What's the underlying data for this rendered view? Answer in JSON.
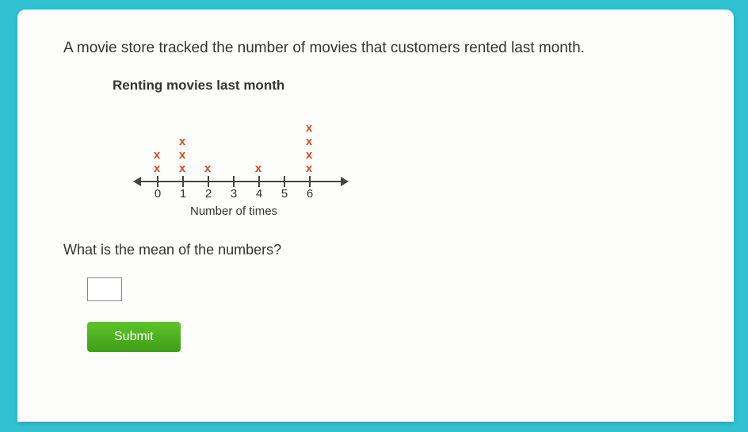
{
  "intro": "A movie store tracked the number of movies that customers rented last month.",
  "chart": {
    "title": "Renting movies last month",
    "axis_label": "Number of times",
    "tick_spacing": 32,
    "tick_start": 28,
    "ticks": [
      "0",
      "1",
      "2",
      "3",
      "4",
      "5",
      "6"
    ],
    "counts": [
      2,
      3,
      1,
      0,
      1,
      0,
      4
    ],
    "mark_color": "#d24a1f",
    "axis_color": "#444444"
  },
  "question": "What is the mean of the numbers?",
  "answer_value": "",
  "submit_label": "Submit"
}
